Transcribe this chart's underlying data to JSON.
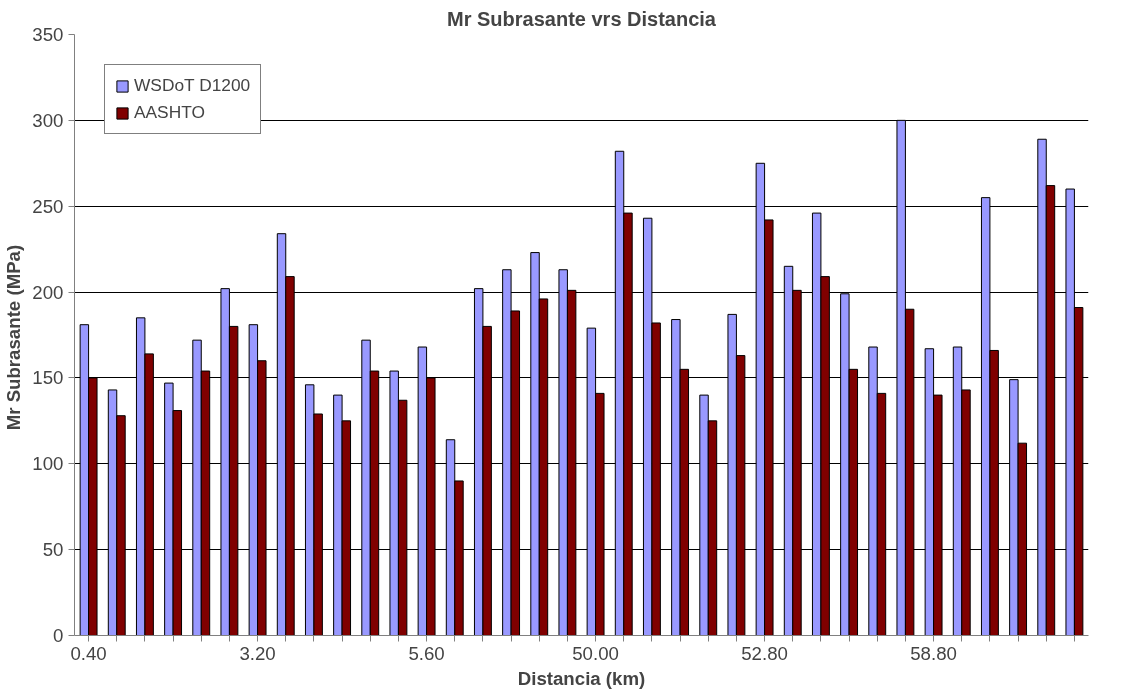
{
  "chart_data": {
    "type": "bar",
    "title": "Mr Subrasante vrs Distancia",
    "xlabel": "Distancia (km)",
    "ylabel": "Mr Subrasante  (MPa)",
    "categories": [
      "0.40",
      null,
      null,
      null,
      null,
      null,
      "3.20",
      null,
      null,
      null,
      null,
      null,
      "5.60",
      null,
      null,
      null,
      null,
      null,
      "50.00",
      null,
      null,
      null,
      null,
      null,
      "52.80",
      null,
      null,
      null,
      null,
      null,
      "58.80",
      null,
      null,
      null,
      null,
      null
    ],
    "series": [
      {
        "name": "WSDoT D1200",
        "color": "#9999ff",
        "values": [
          181,
          143,
          185,
          147,
          172,
          202,
          181,
          234,
          146,
          140,
          172,
          154,
          168,
          114,
          202,
          213,
          223,
          213,
          179,
          282,
          243,
          184,
          140,
          187,
          275,
          215,
          246,
          199,
          168,
          300,
          167,
          168,
          255,
          149,
          289,
          260
        ]
      },
      {
        "name": "AASHTO",
        "color": "#800000",
        "values": [
          150,
          128,
          164,
          131,
          154,
          180,
          160,
          209,
          129,
          125,
          154,
          137,
          150,
          90,
          180,
          189,
          196,
          201,
          141,
          246,
          182,
          155,
          125,
          163,
          242,
          201,
          209,
          155,
          141,
          190,
          140,
          143,
          166,
          112,
          262,
          191
        ]
      }
    ],
    "ylim": [
      0,
      350
    ],
    "yticks": [
      0,
      50,
      100,
      150,
      200,
      250,
      300,
      350
    ],
    "grid": "y",
    "legend": "top left"
  }
}
